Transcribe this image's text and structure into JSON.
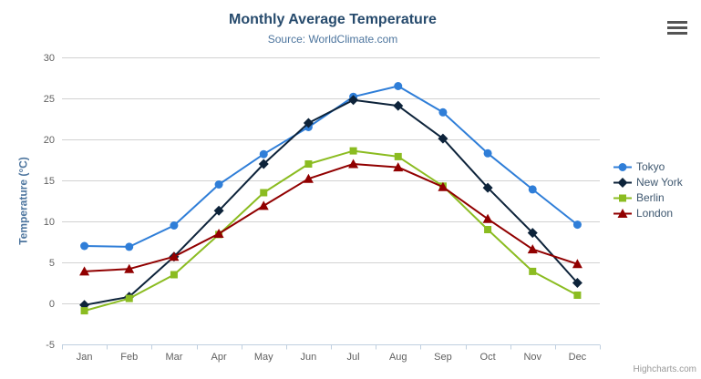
{
  "header": {
    "title": "Monthly Average Temperature",
    "subtitle": "Source: WorldClimate.com"
  },
  "credit_label": "Highcharts.com",
  "chart_data": {
    "type": "line",
    "title": "Monthly Average Temperature",
    "subtitle": "Source: WorldClimate.com",
    "xlabel": "",
    "ylabel": "Temperature (°C)",
    "categories": [
      "Jan",
      "Feb",
      "Mar",
      "Apr",
      "May",
      "Jun",
      "Jul",
      "Aug",
      "Sep",
      "Oct",
      "Nov",
      "Dec"
    ],
    "series": [
      {
        "name": "Tokyo",
        "color": "#2f7ed8",
        "marker": "circle",
        "values": [
          7.0,
          6.9,
          9.5,
          14.5,
          18.2,
          21.5,
          25.2,
          26.5,
          23.3,
          18.3,
          13.9,
          9.6
        ]
      },
      {
        "name": "New York",
        "color": "#0d233a",
        "marker": "diamond",
        "values": [
          -0.2,
          0.8,
          5.7,
          11.3,
          17.0,
          22.0,
          24.8,
          24.1,
          20.1,
          14.1,
          8.6,
          2.5
        ]
      },
      {
        "name": "Berlin",
        "color": "#8bbc21",
        "marker": "square",
        "values": [
          -0.9,
          0.6,
          3.5,
          8.4,
          13.5,
          17.0,
          18.6,
          17.9,
          14.3,
          9.0,
          3.9,
          1.0
        ]
      },
      {
        "name": "London",
        "color": "#910000",
        "marker": "triangle",
        "values": [
          3.9,
          4.2,
          5.7,
          8.5,
          11.9,
          15.2,
          17.0,
          16.6,
          14.2,
          10.3,
          6.6,
          4.8
        ]
      }
    ],
    "ylim": [
      -5,
      30
    ],
    "ytick_interval": 5,
    "grid": true,
    "legend_position": "right-middle",
    "colors": {
      "grid_line": "#d2d2d2",
      "axis_line": "#c0d0e0",
      "axis_label": "#606060",
      "title": "#274b6d",
      "subtitle": "#4d759e",
      "legend_text": "#3E576F"
    }
  }
}
